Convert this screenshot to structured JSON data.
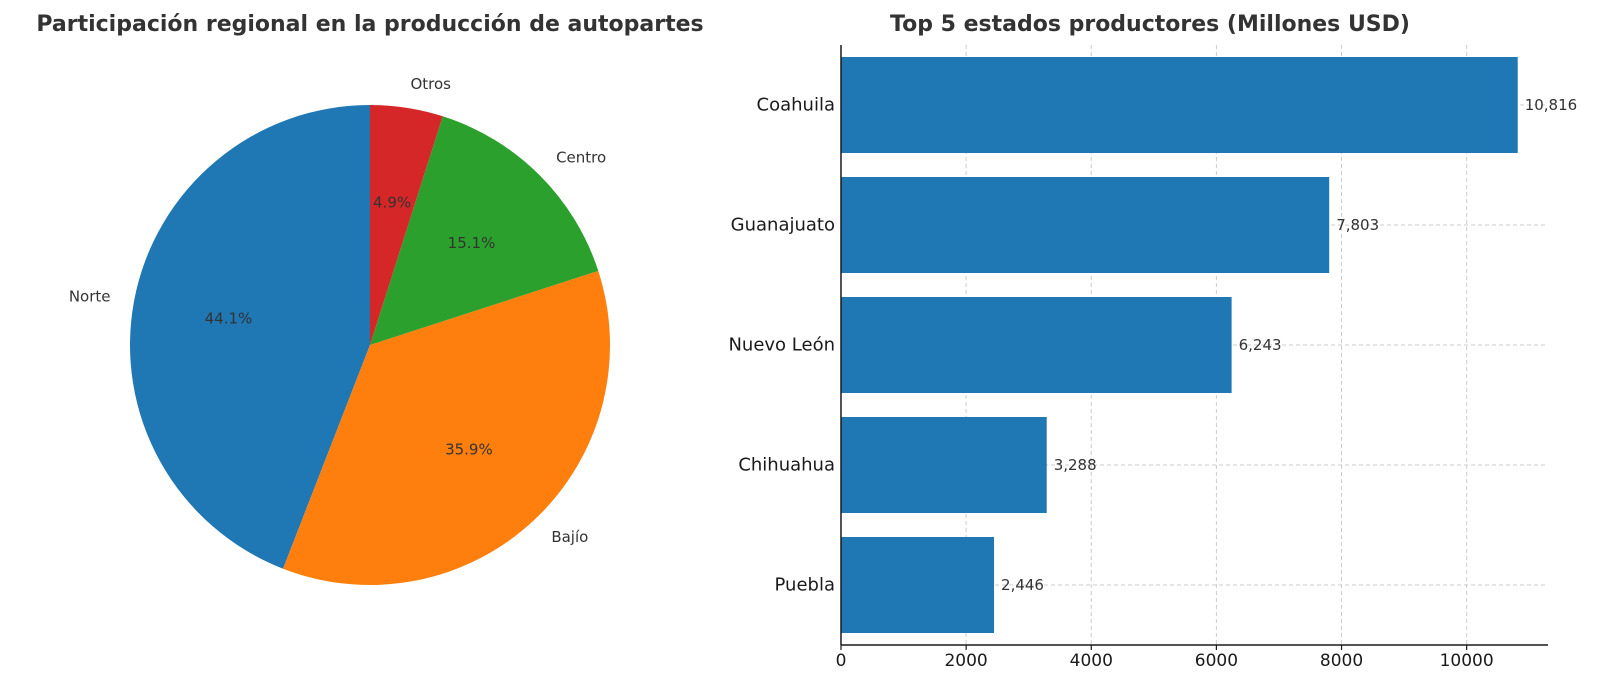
{
  "chart_data": [
    {
      "type": "pie",
      "title": "Participación regional en la producción de autopartes",
      "categories": [
        "Norte",
        "Bajío",
        "Centro",
        "Otros"
      ],
      "values": [
        44.1,
        35.9,
        15.1,
        4.9
      ],
      "value_labels": [
        "44.1%",
        "35.9%",
        "15.1%",
        "4.9%"
      ],
      "colors": [
        "#1f77b4",
        "#ff7f0e",
        "#2ca02c",
        "#d62728"
      ],
      "start_angle": 90,
      "direction": "counterclockwise"
    },
    {
      "type": "bar",
      "orientation": "horizontal",
      "title": "Top 5 estados productores (Millones USD)",
      "categories": [
        "Coahuila",
        "Guanajuato",
        "Nuevo León",
        "Chihuahua",
        "Puebla"
      ],
      "values": [
        10816,
        7803,
        6243,
        3288,
        2446
      ],
      "value_labels": [
        "10,816",
        "7,803",
        "6,243",
        "3,288",
        "2,446"
      ],
      "xlim": [
        0,
        11300
      ],
      "xticks": [
        0,
        2000,
        4000,
        6000,
        8000,
        10000
      ],
      "xlabel": "",
      "ylabel": "",
      "grid": true,
      "color": "#1f77b4"
    }
  ]
}
